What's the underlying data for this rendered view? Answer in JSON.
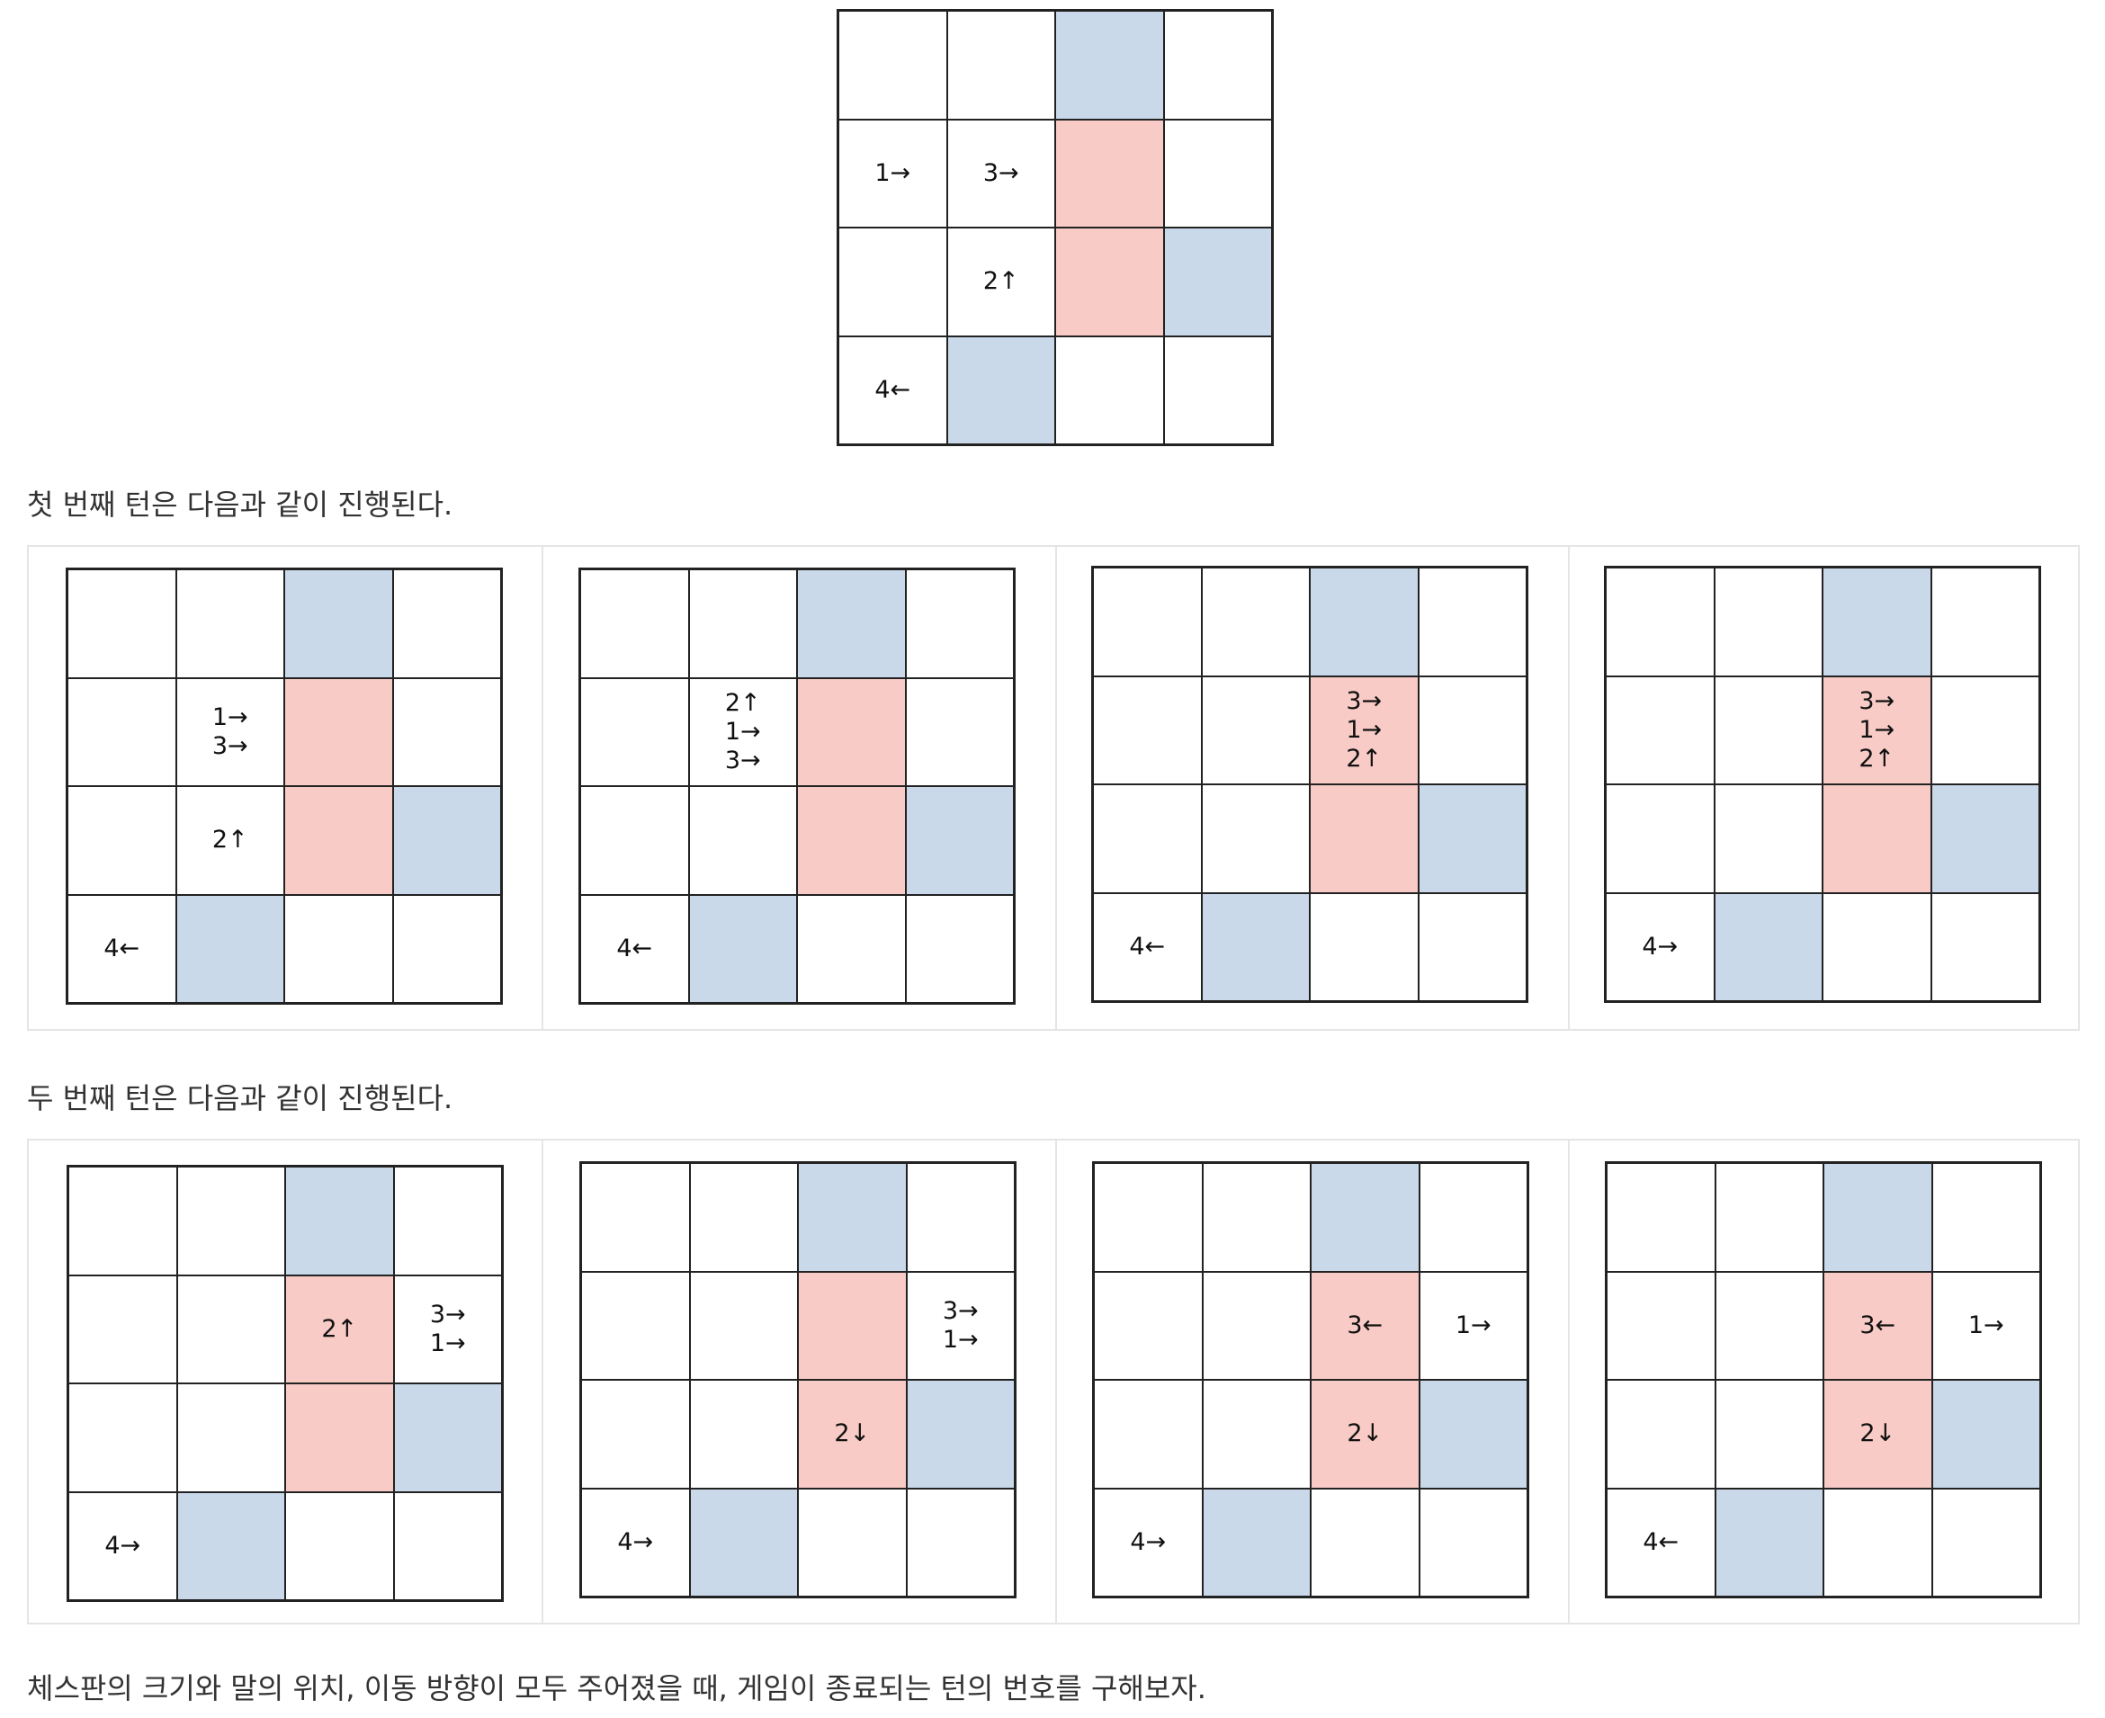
{
  "colors": {
    "red": "#f8cbc6",
    "blue": "#c9d9ea",
    "white": "#ffffff",
    "border": "#222222"
  },
  "board_colors": [
    [
      "white",
      "white",
      "blue",
      "white"
    ],
    [
      "white",
      "white",
      "red",
      "white"
    ],
    [
      "white",
      "white",
      "red",
      "blue"
    ],
    [
      "white",
      "blue",
      "white",
      "white"
    ]
  ],
  "initial_board": [
    [
      [],
      [],
      [],
      []
    ],
    [
      [
        "1→"
      ],
      [
        "3→"
      ],
      [],
      []
    ],
    [
      [],
      [
        "2↑"
      ],
      [],
      []
    ],
    [
      [
        "4←"
      ],
      [],
      [],
      []
    ]
  ],
  "caption_turn1": "첫 번째 턴은 다음과 같이 진행된다.",
  "turn1": [
    [
      [
        [],
        [],
        [],
        []
      ],
      [
        [],
        [
          "1→",
          "3→"
        ],
        [],
        []
      ],
      [
        [],
        [
          "2↑"
        ],
        [],
        []
      ],
      [
        [
          "4←"
        ],
        [],
        [],
        []
      ]
    ],
    [
      [
        [],
        [],
        [],
        []
      ],
      [
        [],
        [
          "2↑",
          "1→",
          "3→"
        ],
        [],
        []
      ],
      [
        [],
        [],
        [],
        []
      ],
      [
        [
          "4←"
        ],
        [],
        [],
        []
      ]
    ],
    [
      [
        [],
        [],
        [],
        []
      ],
      [
        [],
        [],
        [
          "3→",
          "1→",
          "2↑"
        ],
        []
      ],
      [
        [],
        [],
        [],
        []
      ],
      [
        [
          "4←"
        ],
        [],
        [],
        []
      ]
    ],
    [
      [
        [],
        [],
        [],
        []
      ],
      [
        [],
        [],
        [
          "3→",
          "1→",
          "2↑"
        ],
        []
      ],
      [
        [],
        [],
        [],
        []
      ],
      [
        [
          "4→"
        ],
        [],
        [],
        []
      ]
    ]
  ],
  "caption_turn2": "두 번째 턴은 다음과 같이 진행된다.",
  "turn2": [
    [
      [
        [],
        [],
        [],
        []
      ],
      [
        [],
        [],
        [
          "2↑"
        ],
        [
          "3→",
          "1→"
        ]
      ],
      [
        [],
        [],
        [],
        []
      ],
      [
        [
          "4→"
        ],
        [],
        [],
        []
      ]
    ],
    [
      [
        [],
        [],
        [],
        []
      ],
      [
        [],
        [],
        [],
        [
          "3→",
          "1→"
        ]
      ],
      [
        [],
        [],
        [
          "2↓"
        ],
        []
      ],
      [
        [
          "4→"
        ],
        [],
        [],
        []
      ]
    ],
    [
      [
        [],
        [],
        [],
        []
      ],
      [
        [],
        [],
        [
          "3←"
        ],
        [
          "1→"
        ]
      ],
      [
        [],
        [],
        [
          "2↓"
        ],
        []
      ],
      [
        [
          "4→"
        ],
        [],
        [],
        []
      ]
    ],
    [
      [
        [],
        [],
        [],
        []
      ],
      [
        [],
        [],
        [
          "3←"
        ],
        [
          "1→"
        ]
      ],
      [
        [],
        [],
        [
          "2↓"
        ],
        []
      ],
      [
        [
          "4←"
        ],
        [],
        [],
        []
      ]
    ]
  ],
  "caption_final": "체스판의 크기와 말의 위치, 이동 방향이 모두 주어졌을 때, 게임이 종료되는 턴의 번호를 구해보자."
}
